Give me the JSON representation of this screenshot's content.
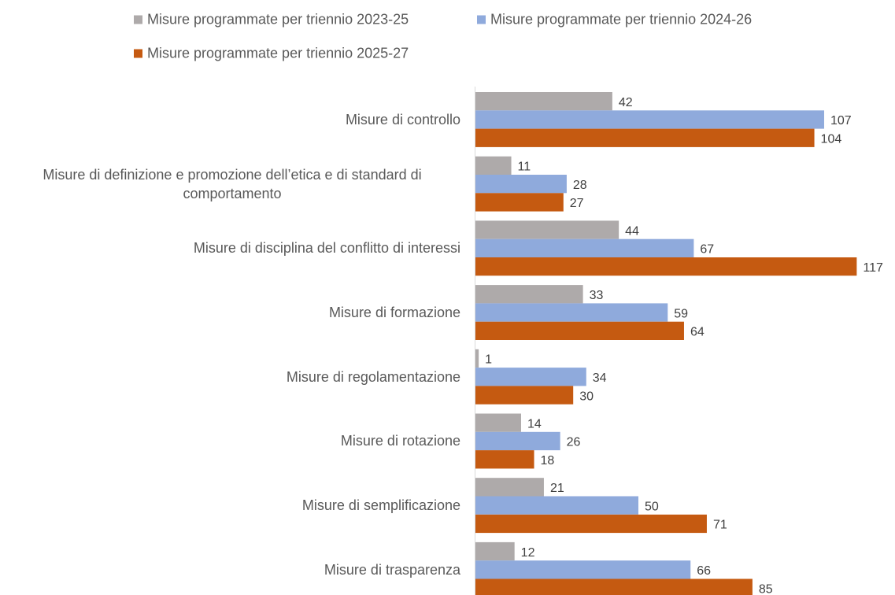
{
  "chart_data": {
    "type": "bar",
    "orientation": "horizontal",
    "categories": [
      "Misure di controllo",
      "Misure di definizione e promozione dell’etica e di standard di comportamento",
      "Misure di disciplina del conflitto di interessi",
      "Misure di formazione",
      "Misure di regolamentazione",
      "Misure di rotazione",
      "Misure di semplificazione",
      "Misure di trasparenza"
    ],
    "series": [
      {
        "name": "Misure programmate per triennio 2023-25",
        "color": "#aeaaaa",
        "values": [
          42,
          11,
          44,
          33,
          1,
          14,
          21,
          12
        ]
      },
      {
        "name": "Misure programmate per triennio 2024-26",
        "color": "#8faadc",
        "values": [
          107,
          28,
          67,
          59,
          34,
          26,
          50,
          66
        ]
      },
      {
        "name": "Misure programmate per triennio 2025-27",
        "color": "#c55a11",
        "values": [
          104,
          27,
          117,
          64,
          30,
          18,
          71,
          85
        ]
      }
    ],
    "legend": "top"
  }
}
